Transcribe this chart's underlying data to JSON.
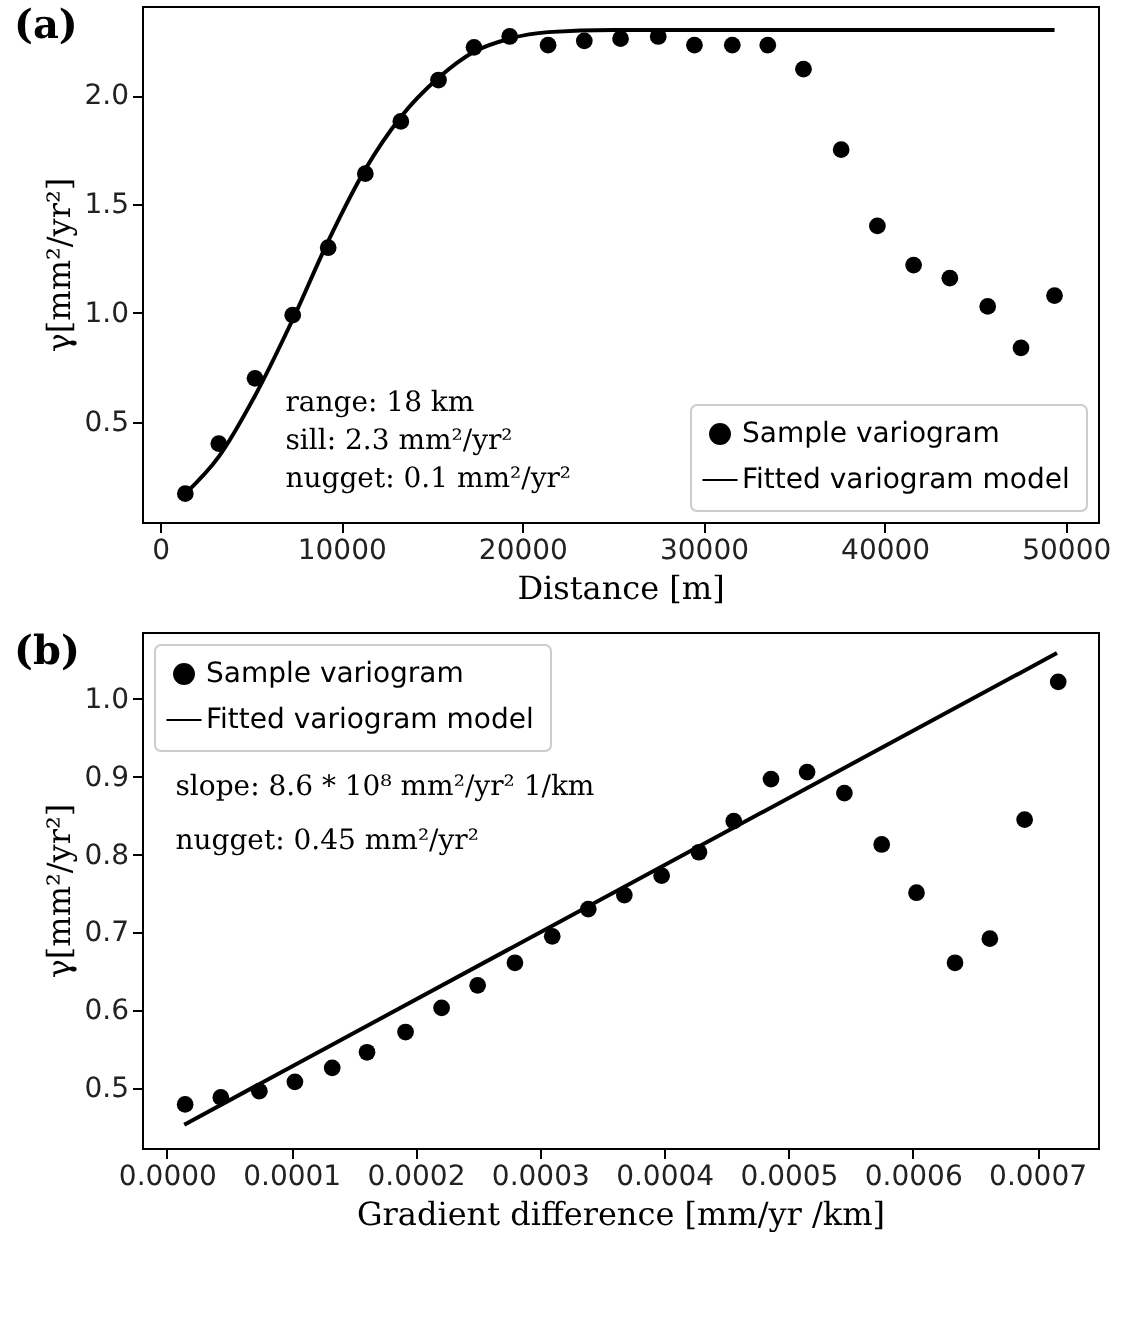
{
  "chart_data": [
    {
      "type": "scatter",
      "title": "(a)",
      "xlabel": "Distance [m]",
      "ylabel": "γ[mm²/yr²]",
      "annotations": [
        "range:      18 km",
        "sill:            2.3 mm²/yr²",
        "nugget:    0.1 mm²/yr²"
      ],
      "xlim": [
        -1000,
        51780
      ],
      "ylim": [
        0.04,
        2.41
      ],
      "xticks": [
        0,
        10000,
        20000,
        30000,
        40000,
        50000
      ],
      "yticks": [
        {
          "value": 0.5,
          "label": "0.5"
        },
        {
          "value": 1,
          "label": "1.0"
        },
        {
          "value": 1.5,
          "label": "1.5"
        },
        {
          "value": 2,
          "label": "2.0"
        }
      ],
      "legend": "bottom right",
      "line_style": "solid",
      "grid": false,
      "series": [
        {
          "name": "Sample variogram",
          "marker": "circle",
          "color": "#000000",
          "x": [
            1390,
            3240,
            5240,
            7320,
            9280,
            11330,
            13290,
            15370,
            17330,
            19300,
            21420,
            23420,
            25420,
            27500,
            29500,
            31590,
            33550,
            35520,
            37600,
            39600,
            41600,
            43600,
            45690,
            47530,
            49380
          ],
          "values": [
            0.17,
            0.4,
            0.7,
            0.99,
            1.3,
            1.64,
            1.88,
            2.07,
            2.22,
            2.27,
            2.23,
            2.25,
            2.26,
            2.27,
            2.23,
            2.23,
            2.23,
            2.12,
            1.75,
            1.4,
            1.22,
            1.16,
            1.03,
            0.84,
            1.08
          ]
        },
        {
          "name": "Fitted variogram model",
          "type": "line",
          "marker": "none",
          "color": "#000000",
          "x": [
            1390,
            3240,
            5240,
            7320,
            9280,
            11330,
            13290,
            15370,
            17330,
            19300,
            21420,
            25000,
            30000,
            49380
          ],
          "values": [
            0.17,
            0.34,
            0.62,
            0.97,
            1.33,
            1.66,
            1.9,
            2.08,
            2.2,
            2.26,
            2.29,
            2.3,
            2.3,
            2.3
          ]
        }
      ]
    },
    {
      "type": "scatter",
      "title": "(b)",
      "xlabel": "Gradient difference [mm/yr /km]",
      "ylabel": "γ[mm²/yr²]",
      "annotations": [
        "slope:        8.6 * 10⁸ mm²/yr² 1/km",
        "nugget:    0.45 mm²/yr²"
      ],
      "xlim": [
        -2e-05,
        0.000749
      ],
      "ylim": [
        0.423,
        1.086
      ],
      "xticks": [
        {
          "value": 0,
          "label": "0.0000"
        },
        0.0001,
        0.0002,
        0.0003,
        0.0004,
        0.0005,
        0.0006,
        0.0007
      ],
      "yticks": [
        0.5,
        0.6,
        0.7,
        0.8,
        0.9,
        {
          "value": 1,
          "label": "1.0"
        }
      ],
      "legend": "top left",
      "line_style": "solid",
      "grid": false,
      "series": [
        {
          "name": "Sample variogram",
          "marker": "circle",
          "color": "#000000",
          "x": [
            1.47e-05,
            4.34e-05,
            7.44e-05,
            0.000103,
            0.000133,
            0.000161,
            0.000192,
            0.000221,
            0.00025,
            0.00028,
            0.00031,
            0.000339,
            0.000368,
            0.000398,
            0.000428,
            0.000456,
            0.000486,
            0.000515,
            0.000545,
            0.000575,
            0.000603,
            0.000634,
            0.000662,
            0.00069,
            0.000717
          ],
          "values": [
            0.479,
            0.488,
            0.496,
            0.508,
            0.526,
            0.546,
            0.572,
            0.603,
            0.632,
            0.661,
            0.695,
            0.73,
            0.748,
            0.773,
            0.803,
            0.843,
            0.897,
            0.906,
            0.879,
            0.813,
            0.751,
            0.661,
            0.692,
            0.845,
            1.022
          ]
        },
        {
          "name": "Fitted variogram model",
          "type": "line",
          "marker": "none",
          "color": "#000000",
          "x": [
            1.4e-05,
            0.000716
          ],
          "values": [
            0.453,
            1.059
          ]
        }
      ]
    }
  ]
}
